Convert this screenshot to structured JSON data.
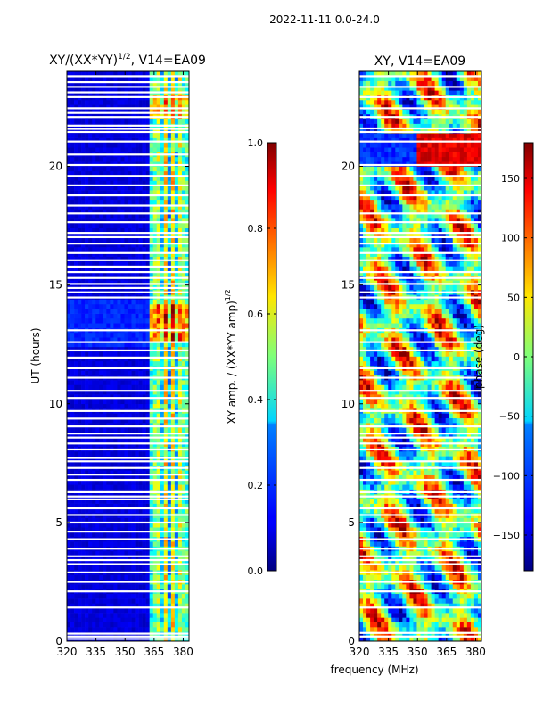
{
  "suptitle": "2022-11-11 0.0-24.0",
  "colors": {
    "background": "#ffffff",
    "line": "#000000"
  },
  "chart_data": [
    {
      "type": "heatmap",
      "title_prefix": "XY/(XX*YY)",
      "title_exp": "1/2",
      "title_suffix": ", V14=EA09",
      "xlabel": "",
      "ylabel": "UT (hours)",
      "xlim": [
        320,
        383
      ],
      "ylim": [
        0,
        24
      ],
      "xticks": [
        320,
        335,
        350,
        365,
        380
      ],
      "yticks": [
        0,
        5,
        10,
        15,
        20
      ],
      "colorbar": {
        "label": "XY amp. / (XX*YY amp)",
        "label_exp": "1/2",
        "range": [
          0.0,
          1.0
        ],
        "ticks": [
          "0.0",
          "0.2",
          "0.4",
          "0.6",
          "0.8",
          "1.0"
        ],
        "colormap": "jet"
      },
      "gaps_ut": [
        0.1,
        0.2,
        0.32,
        1.42,
        2.1,
        2.5,
        2.9,
        3.25,
        3.42,
        3.58,
        3.9,
        4.3,
        4.62,
        5.0,
        5.32,
        5.6,
        5.98,
        6.1,
        6.28,
        6.8,
        7.02,
        7.3,
        7.58,
        7.72,
        8.08,
        8.33,
        8.58,
        8.75,
        9.05,
        9.38,
        9.7,
        10.25,
        10.55,
        11.1,
        11.5,
        11.95,
        12.25,
        12.6,
        13.1,
        14.48,
        14.7,
        14.88,
        15.05,
        15.3,
        15.55,
        15.78,
        16.05,
        16.35,
        16.75,
        17.02,
        17.2,
        17.65,
        18.02,
        18.35,
        18.78,
        19.2,
        19.6,
        20.06,
        20.5,
        21.05,
        21.45,
        21.58,
        21.72,
        22.08,
        22.25,
        22.45,
        22.92,
        23.12,
        23.35,
        23.55,
        23.8
      ],
      "bright_band_mhz": [
        362,
        383
      ]
    },
    {
      "type": "heatmap",
      "title": "XY, V14=EA09",
      "xlabel": "frequency (MHz)",
      "ylabel": "",
      "xlim": [
        320,
        383
      ],
      "ylim": [
        0,
        24
      ],
      "xticks": [
        320,
        335,
        350,
        365,
        380
      ],
      "yticks": [
        0,
        5,
        10,
        15,
        20
      ],
      "colorbar": {
        "label": "phase (deg)",
        "range": [
          -180,
          180
        ],
        "ticks": [
          "−150",
          "−100",
          "−50",
          "0",
          "50",
          "100",
          "150"
        ],
        "tick_values": [
          -150,
          -100,
          -50,
          0,
          50,
          100,
          150
        ],
        "colormap": "jet"
      },
      "gaps_ut": [
        0.2,
        0.35,
        1.42,
        2.1,
        2.5,
        2.9,
        3.25,
        3.42,
        3.58,
        3.9,
        4.3,
        4.62,
        5.0,
        5.32,
        5.6,
        6.1,
        6.28,
        6.8,
        7.3,
        7.58,
        8.08,
        8.33,
        8.58,
        8.75,
        9.05,
        9.7,
        10.25,
        10.55,
        11.1,
        11.5,
        12.25,
        12.6,
        13.1,
        14.48,
        14.7,
        15.05,
        15.3,
        15.55,
        16.05,
        16.35,
        16.75,
        17.02,
        17.2,
        17.65,
        18.02,
        18.78,
        19.2,
        19.6,
        20.06,
        21.05,
        21.45,
        21.6,
        22.08,
        22.45,
        22.92,
        23.35,
        23.8
      ]
    }
  ]
}
